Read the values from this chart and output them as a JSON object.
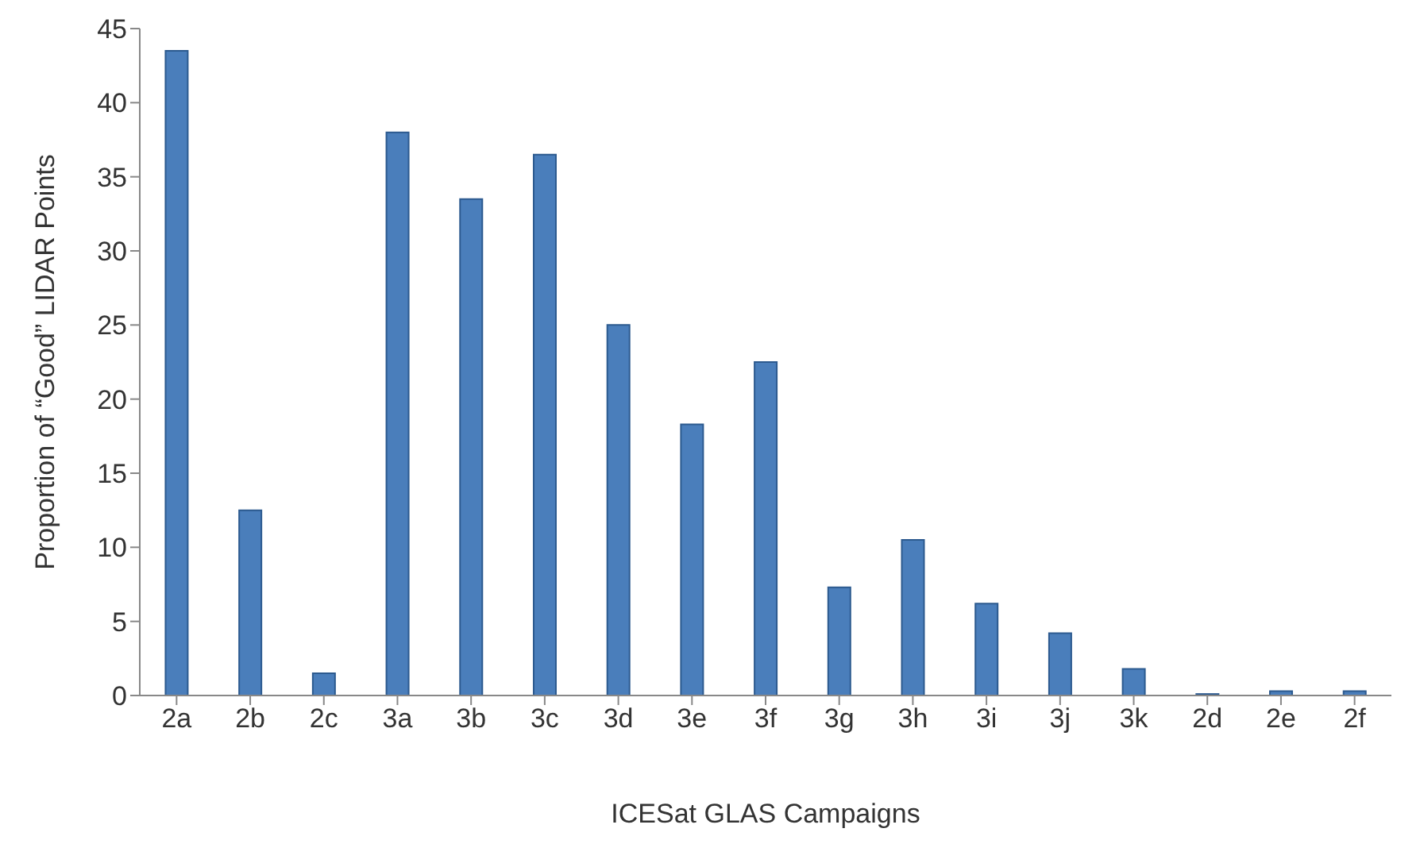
{
  "chart_data": {
    "type": "bar",
    "xlabel": "ICESat GLAS Campaigns",
    "ylabel": "Proportion of “Good” LIDAR Points",
    "categories": [
      "2a",
      "2b",
      "2c",
      "3a",
      "3b",
      "3c",
      "3d",
      "3e",
      "3f",
      "3g",
      "3h",
      "3i",
      "3j",
      "3k",
      "2d",
      "2e",
      "2f"
    ],
    "values": [
      43.5,
      12.5,
      1.5,
      38,
      33.5,
      36.5,
      25,
      18.3,
      22.5,
      7.3,
      10.5,
      6.2,
      4.2,
      1.8,
      0.1,
      0.3,
      0.3
    ],
    "color": "#4a7ebb",
    "ylim": [
      0,
      45
    ],
    "yticks": [
      0,
      5,
      10,
      15,
      20,
      25,
      30,
      35,
      40,
      45
    ],
    "grid": false
  }
}
